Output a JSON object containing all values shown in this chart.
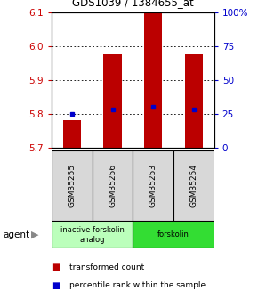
{
  "title": "GDS1039 / 1384655_at",
  "samples": [
    "GSM35255",
    "GSM35256",
    "GSM35253",
    "GSM35254"
  ],
  "bar_bottoms": [
    5.7,
    5.7,
    5.7,
    5.7
  ],
  "bar_tops": [
    5.78,
    5.975,
    6.1,
    5.975
  ],
  "percentile_values": [
    5.8,
    5.812,
    5.82,
    5.812
  ],
  "ylim": [
    5.7,
    6.1
  ],
  "yticks_left": [
    5.7,
    5.8,
    5.9,
    6.0,
    6.1
  ],
  "yticks_right": [
    0,
    25,
    50,
    75,
    100
  ],
  "yticks_right_labels": [
    "0",
    "25",
    "50",
    "75",
    "100%"
  ],
  "groups": [
    {
      "label": "inactive forskolin\nanalog",
      "color": "#bbffbb",
      "span": [
        0,
        2
      ]
    },
    {
      "label": "forskolin",
      "color": "#33dd33",
      "span": [
        2,
        4
      ]
    }
  ],
  "bar_color": "#bb0000",
  "percentile_color": "#0000cc",
  "agent_label": "agent",
  "legend_items": [
    {
      "color": "#bb0000",
      "label": "transformed count"
    },
    {
      "color": "#0000cc",
      "label": "percentile rank within the sample"
    }
  ]
}
